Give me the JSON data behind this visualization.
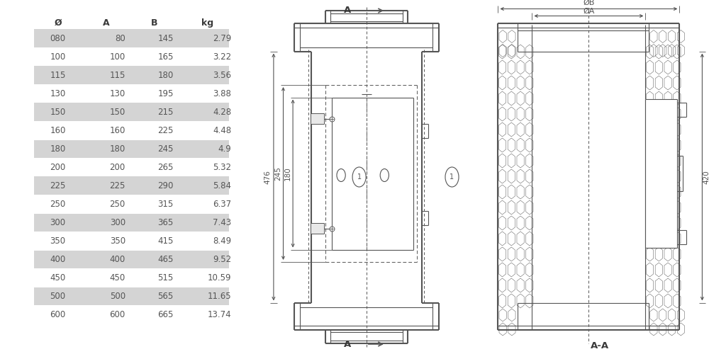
{
  "table_headers": [
    "Ø",
    "A",
    "B",
    "kg"
  ],
  "table_rows": [
    [
      "080",
      "80",
      "145",
      "2.79"
    ],
    [
      "100",
      "100",
      "165",
      "3.22"
    ],
    [
      "115",
      "115",
      "180",
      "3.56"
    ],
    [
      "130",
      "130",
      "195",
      "3.88"
    ],
    [
      "150",
      "150",
      "215",
      "4.28"
    ],
    [
      "160",
      "160",
      "225",
      "4.48"
    ],
    [
      "180",
      "180",
      "245",
      "4.9"
    ],
    [
      "200",
      "200",
      "265",
      "5.32"
    ],
    [
      "225",
      "225",
      "290",
      "5.84"
    ],
    [
      "250",
      "250",
      "315",
      "6.37"
    ],
    [
      "300",
      "300",
      "365",
      "7.43"
    ],
    [
      "350",
      "350",
      "415",
      "8.49"
    ],
    [
      "400",
      "400",
      "465",
      "9.52"
    ],
    [
      "450",
      "450",
      "515",
      "10.59"
    ],
    [
      "500",
      "500",
      "565",
      "11.65"
    ],
    [
      "600",
      "600",
      "665",
      "13.74"
    ]
  ],
  "shaded_rows": [
    0,
    2,
    4,
    6,
    8,
    10,
    12,
    14
  ],
  "row_bg_shaded": "#d4d4d4",
  "row_bg_white": "#ffffff",
  "header_color": "#3a3a3a",
  "text_color": "#555555",
  "line_color": "#555555",
  "bg_color": "#ffffff"
}
